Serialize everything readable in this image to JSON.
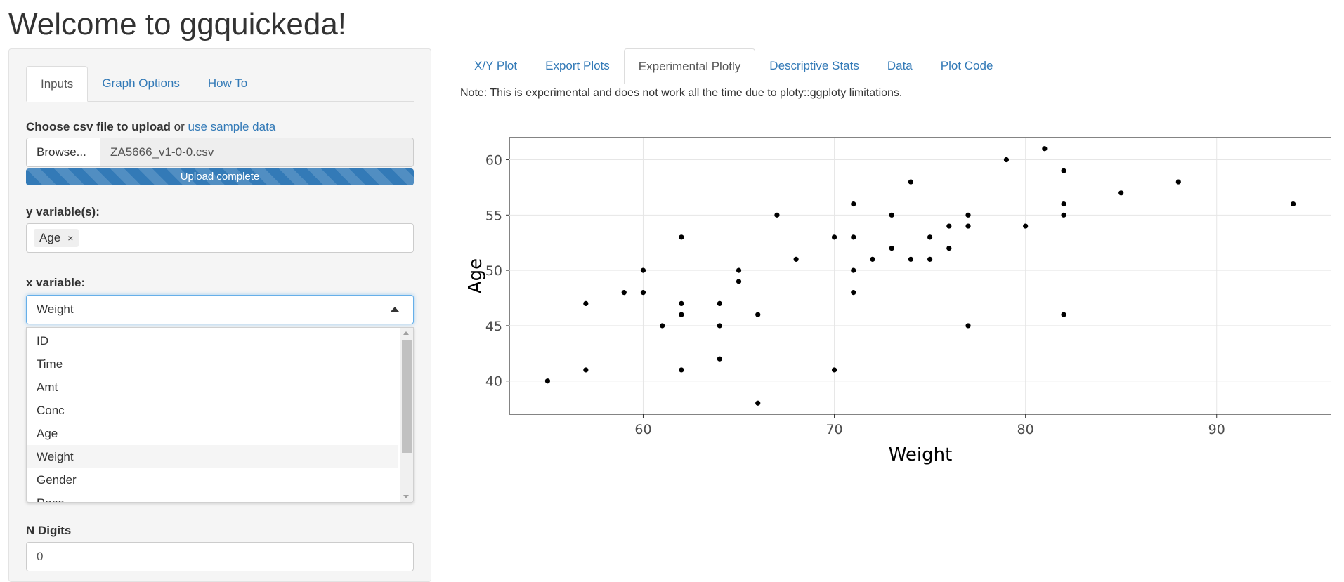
{
  "app": {
    "title": "Welcome to ggquickeda!"
  },
  "sidebar": {
    "tabs": [
      {
        "label": "Inputs",
        "active": true
      },
      {
        "label": "Graph Options",
        "active": false
      },
      {
        "label": "How To",
        "active": false
      }
    ],
    "upload": {
      "label_bold": "Choose csv file to upload",
      "label_or": "or",
      "sample_link": "use sample data",
      "browse_label": "Browse...",
      "file_name": "ZA5666_v1-0-0.csv",
      "status": "Upload complete",
      "progress_percent": 100
    },
    "y_variable": {
      "label": "y variable(s):",
      "chips": [
        {
          "label": "Age",
          "remove": "×"
        }
      ]
    },
    "x_variable": {
      "label": "x variable:",
      "value": "Weight",
      "options": [
        {
          "label": "ID",
          "selected": false
        },
        {
          "label": "Time",
          "selected": false
        },
        {
          "label": "Amt",
          "selected": false
        },
        {
          "label": "Conc",
          "selected": false
        },
        {
          "label": "Age",
          "selected": false
        },
        {
          "label": "Weight",
          "selected": true
        },
        {
          "label": "Gender",
          "selected": false
        },
        {
          "label": "Race",
          "selected": false
        }
      ]
    },
    "n_digits": {
      "label": "N Digits",
      "value": "0"
    }
  },
  "main": {
    "tabs": [
      {
        "label": "X/Y Plot",
        "active": false
      },
      {
        "label": "Export Plots",
        "active": false
      },
      {
        "label": "Experimental Plotly",
        "active": true
      },
      {
        "label": "Descriptive Stats",
        "active": false
      },
      {
        "label": "Data",
        "active": false
      },
      {
        "label": "Plot Code",
        "active": false
      }
    ],
    "note": "Note: This is experimental and does not work all the time due to ploty::ggploty limitations."
  },
  "chart_data": {
    "type": "scatter",
    "xlabel": "Weight",
    "ylabel": "Age",
    "xlim": [
      53,
      96
    ],
    "ylim": [
      37,
      62
    ],
    "xticks": [
      60,
      70,
      80,
      90
    ],
    "yticks": [
      40,
      45,
      50,
      55,
      60
    ],
    "grid": true,
    "point_color": "#000000",
    "points": [
      [
        55,
        40
      ],
      [
        57,
        47
      ],
      [
        57,
        41
      ],
      [
        59,
        48
      ],
      [
        60,
        50
      ],
      [
        60,
        48
      ],
      [
        61,
        45
      ],
      [
        62,
        53
      ],
      [
        62,
        47
      ],
      [
        62,
        46
      ],
      [
        62,
        41
      ],
      [
        64,
        47
      ],
      [
        64,
        45
      ],
      [
        64,
        42
      ],
      [
        65,
        50
      ],
      [
        65,
        49
      ],
      [
        66,
        46
      ],
      [
        66,
        38
      ],
      [
        67,
        55
      ],
      [
        68,
        51
      ],
      [
        70,
        53
      ],
      [
        70,
        41
      ],
      [
        71,
        56
      ],
      [
        71,
        53
      ],
      [
        71,
        50
      ],
      [
        71,
        48
      ],
      [
        72,
        51
      ],
      [
        73,
        55
      ],
      [
        73,
        52
      ],
      [
        74,
        58
      ],
      [
        74,
        51
      ],
      [
        75,
        53
      ],
      [
        75,
        51
      ],
      [
        76,
        54
      ],
      [
        76,
        52
      ],
      [
        77,
        55
      ],
      [
        77,
        54
      ],
      [
        77,
        45
      ],
      [
        79,
        60
      ],
      [
        80,
        54
      ],
      [
        81,
        61
      ],
      [
        82,
        59
      ],
      [
        82,
        56
      ],
      [
        82,
        55
      ],
      [
        82,
        46
      ],
      [
        85,
        57
      ],
      [
        88,
        58
      ],
      [
        94,
        56
      ]
    ]
  }
}
